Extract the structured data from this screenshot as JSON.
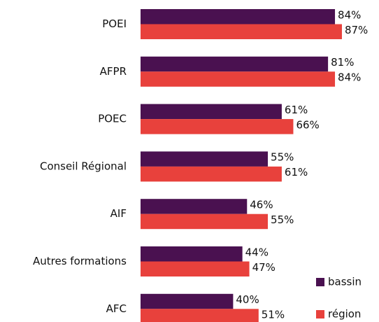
{
  "chart_data": {
    "type": "bar",
    "orientation": "horizontal",
    "categories": [
      "POEI",
      "AFPR",
      "POEC",
      "Conseil Régional",
      "AIF",
      "Autres formations",
      "AFC"
    ],
    "series": [
      {
        "name": "bassin",
        "color": "#4a1150",
        "values": [
          84,
          81,
          61,
          55,
          46,
          44,
          40
        ],
        "value_labels": [
          "84%",
          "81%",
          "61%",
          "55%",
          "46%",
          "44%",
          "40%"
        ]
      },
      {
        "name": "région",
        "color": "#e8413c",
        "values": [
          87,
          84,
          66,
          61,
          55,
          47,
          51
        ],
        "value_labels": [
          "87%",
          "84%",
          "66%",
          "61%",
          "55%",
          "47%",
          "51%"
        ]
      }
    ],
    "legend": "bottom-right"
  }
}
